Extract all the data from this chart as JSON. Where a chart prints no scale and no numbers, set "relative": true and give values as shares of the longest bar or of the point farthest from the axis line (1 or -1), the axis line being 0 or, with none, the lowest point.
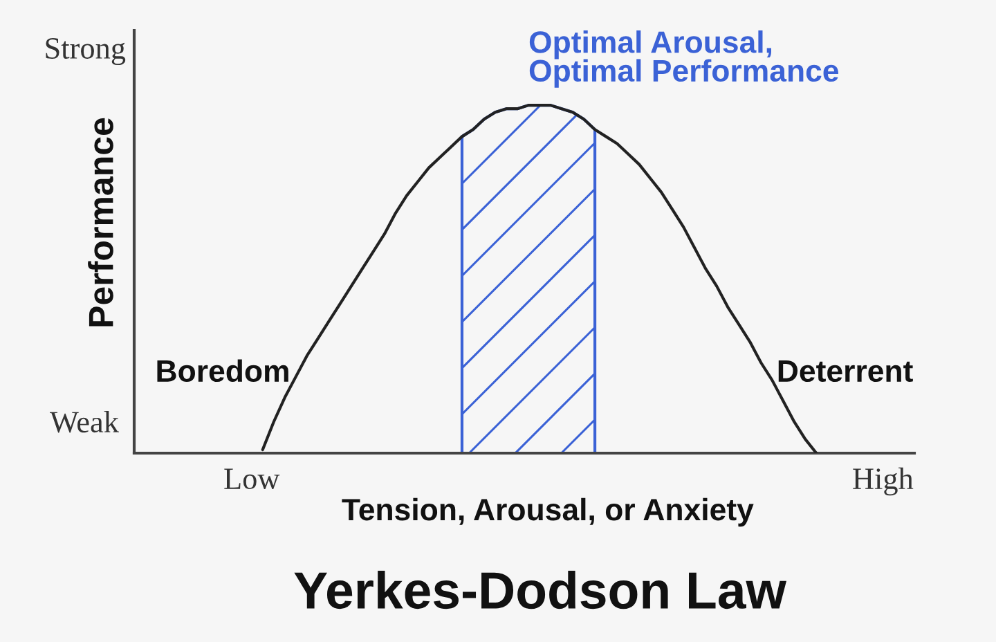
{
  "chart_data": {
    "type": "line",
    "title": "Yerkes-Dodson Law",
    "xlabel": "Tension, Arousal, or Anxiety",
    "ylabel": "Performance",
    "relative": true,
    "categories": [
      "Low",
      null,
      null,
      null,
      null,
      null,
      null,
      null,
      null,
      null,
      null,
      null,
      null,
      null,
      null,
      null,
      null,
      null,
      null,
      null,
      null,
      null,
      null,
      null,
      null,
      null,
      null,
      null,
      null,
      null,
      null,
      null,
      null,
      null,
      null,
      null,
      null,
      null,
      null,
      null,
      null,
      null,
      null,
      null,
      null,
      null,
      null,
      null,
      null,
      null,
      null,
      null,
      null,
      null,
      null,
      null,
      null,
      "High"
    ],
    "series": [
      {
        "type": "area",
        "name": "Optimal Arousal,\nOptimal Performance",
        "color": "#3b62d6",
        "values": [
          null,
          null,
          null,
          null,
          null,
          null,
          null,
          null,
          null,
          null,
          null,
          null,
          null,
          null,
          null,
          null,
          null,
          null,
          null,
          0.91,
          0.93,
          0.96,
          0.98,
          0.99,
          0.99,
          1.0,
          1.0,
          1.0,
          0.99,
          0.98,
          0.96,
          0.93,
          null,
          null,
          null,
          null,
          null,
          null,
          null,
          null,
          null,
          null,
          null,
          null,
          null,
          null,
          null,
          null,
          null,
          null,
          null,
          null,
          null,
          null,
          null,
          null,
          null,
          null
        ]
      },
      {
        "color": "#222222",
        "values": [
          null,
          0.01,
          0.09,
          0.16,
          0.22,
          0.28,
          0.33,
          0.38,
          0.43,
          0.48,
          0.53,
          0.58,
          0.63,
          0.69,
          0.74,
          0.78,
          0.82,
          0.85,
          0.88,
          0.91,
          0.93,
          0.96,
          0.98,
          0.99,
          0.99,
          1.0,
          1.0,
          1.0,
          0.99,
          0.98,
          0.96,
          0.93,
          0.91,
          0.89,
          0.86,
          0.83,
          0.79,
          0.75,
          0.7,
          0.65,
          0.59,
          0.53,
          0.48,
          0.42,
          0.37,
          0.32,
          0.26,
          0.21,
          0.15,
          0.09,
          0.04,
          0,
          null,
          null,
          null,
          null,
          null,
          null
        ]
      }
    ],
    "annotations": [
      "Strong",
      "Boredom",
      "Deterrent",
      "Weak"
    ],
    "line_style": "solid"
  }
}
